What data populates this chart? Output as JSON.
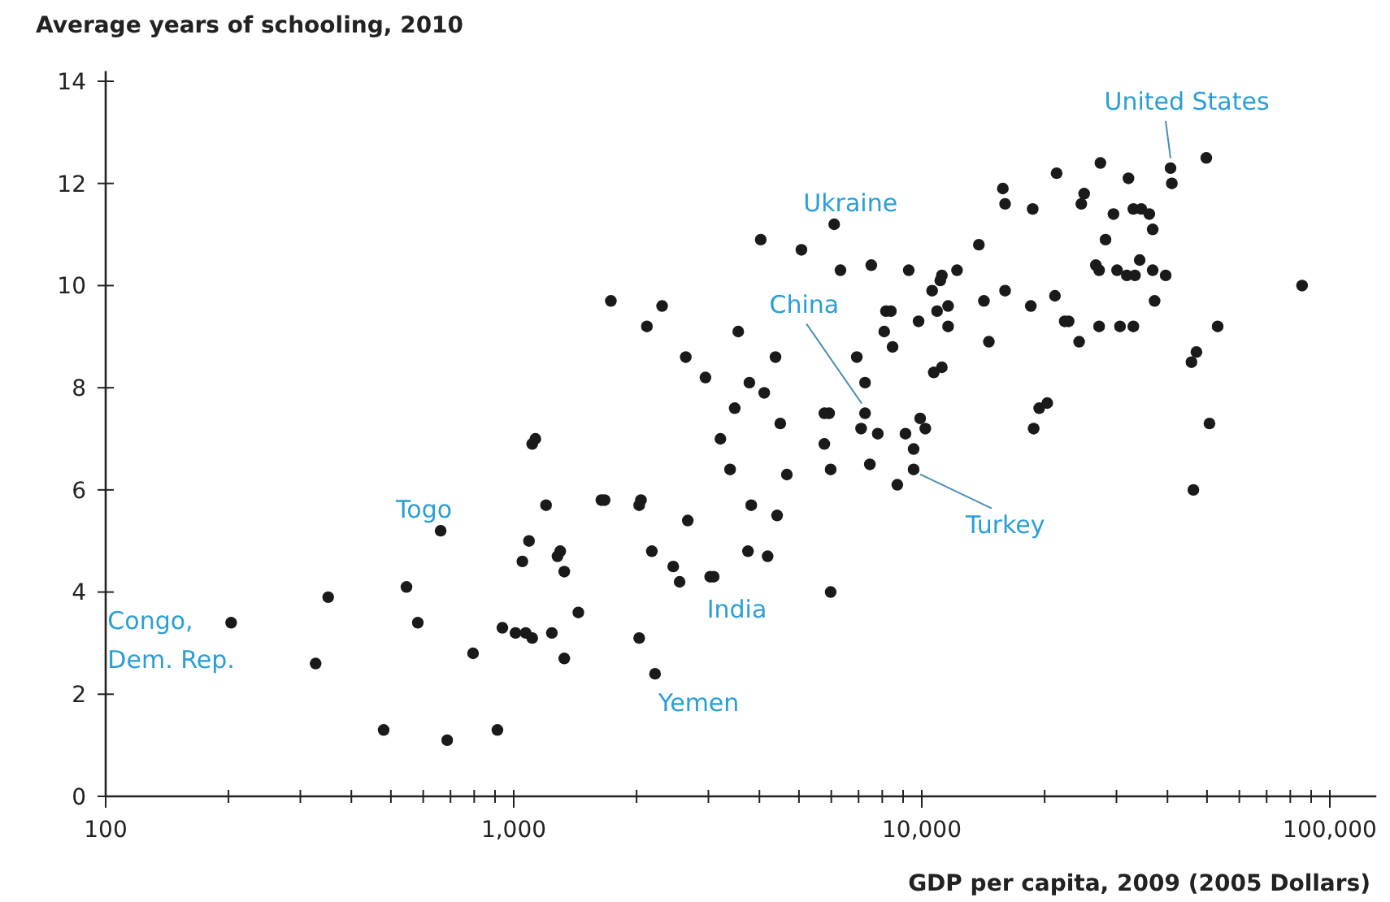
{
  "chart_data": {
    "type": "scatter",
    "xlabel": "GDP per capita, 2009 (2005 Dollars)",
    "ylabel": "Average years of schooling, 2010",
    "log": "x",
    "marker": "circle",
    "grid": false,
    "xlim": [
      100,
      130000
    ],
    "ylim": [
      0,
      14.2
    ],
    "xticks": [
      {
        "value": 100,
        "label": "100"
      },
      {
        "value": 200,
        "label": null
      },
      {
        "value": 300,
        "label": null
      },
      {
        "value": 400,
        "label": null
      },
      {
        "value": 500,
        "label": null
      },
      {
        "value": 600,
        "label": null
      },
      {
        "value": 700,
        "label": null
      },
      {
        "value": 800,
        "label": null
      },
      {
        "value": 900,
        "label": null
      },
      {
        "value": 1000,
        "label": "1,000"
      },
      {
        "value": 2000,
        "label": null
      },
      {
        "value": 3000,
        "label": null
      },
      {
        "value": 4000,
        "label": null
      },
      {
        "value": 5000,
        "label": null
      },
      {
        "value": 6000,
        "label": null
      },
      {
        "value": 7000,
        "label": null
      },
      {
        "value": 8000,
        "label": null
      },
      {
        "value": 9000,
        "label": null
      },
      {
        "value": 10000,
        "label": "10,000"
      },
      {
        "value": 20000,
        "label": null
      },
      {
        "value": 30000,
        "label": null
      },
      {
        "value": 40000,
        "label": null
      },
      {
        "value": 50000,
        "label": null
      },
      {
        "value": 60000,
        "label": null
      },
      {
        "value": 70000,
        "label": null
      },
      {
        "value": 80000,
        "label": null
      },
      {
        "value": 90000,
        "label": null
      },
      {
        "value": 100000,
        "label": "100,000"
      }
    ],
    "yticks": [
      0,
      2,
      4,
      6,
      8,
      10,
      12,
      14
    ],
    "series": [
      {
        "color": "#1a1a1a",
        "x": [
          203,
          327,
          351,
          480,
          546,
          582,
          662,
          687,
          795,
          912,
          938,
          1010,
          1070,
          1110,
          1240,
          1330,
          1050,
          1090,
          1200,
          1280,
          1300,
          1330,
          1110,
          1130,
          1730,
          2310,
          2120,
          3550,
          2640,
          2950,
          4380,
          3780,
          4110,
          3480,
          4500,
          3210,
          3390,
          4670,
          3820,
          4420,
          2670,
          3750,
          4190,
          5980,
          5930,
          5770,
          5770,
          5980,
          7460,
          8710,
          9550,
          9550,
          9120,
          9910,
          10200,
          7800,
          7260,
          7100,
          6930,
          7260,
          6320,
          7520,
          9290,
          8170,
          8400,
          8090,
          8480,
          9820,
          10600,
          10900,
          11600,
          11600,
          11200,
          12200,
          10700,
          11200,
          1640,
          1670,
          2050,
          2030,
          1440,
          2180,
          2460,
          2550,
          3030,
          3090,
          2030,
          2220,
          49800,
          40700,
          41000,
          27400,
          21400,
          32100,
          15800,
          16000,
          18700,
          25000,
          24600,
          29500,
          33000,
          34500,
          36100,
          36800,
          28200,
          13800,
          6100,
          4030,
          5070,
          11100,
          14200,
          16000,
          18500,
          21200,
          14600,
          22400,
          22900,
          24300,
          27200,
          30600,
          33000,
          26700,
          27200,
          30100,
          31800,
          33300,
          34200,
          36800,
          39600,
          37200,
          85500,
          53100,
          47100,
          45800,
          50700,
          46300,
          19400,
          20300,
          18800
        ],
        "values": [
          3.4,
          2.6,
          3.9,
          1.3,
          4.1,
          3.4,
          5.2,
          1.1,
          2.8,
          1.3,
          3.3,
          3.2,
          3.2,
          3.1,
          3.2,
          2.7,
          4.6,
          5.0,
          5.7,
          4.7,
          4.8,
          4.4,
          6.9,
          7.0,
          9.7,
          9.6,
          9.2,
          9.1,
          8.6,
          8.2,
          8.6,
          8.1,
          7.9,
          7.6,
          7.3,
          7.0,
          6.4,
          6.3,
          5.7,
          5.5,
          5.4,
          4.8,
          4.7,
          4.0,
          7.5,
          7.5,
          6.9,
          6.4,
          6.5,
          6.1,
          6.4,
          6.8,
          7.1,
          7.4,
          7.2,
          7.1,
          7.5,
          7.2,
          8.6,
          8.1,
          10.3,
          10.4,
          10.3,
          9.5,
          9.5,
          9.1,
          8.8,
          9.3,
          9.9,
          9.5,
          9.6,
          9.2,
          10.2,
          10.3,
          8.3,
          8.4,
          5.8,
          5.8,
          5.8,
          5.7,
          3.6,
          4.8,
          4.5,
          4.2,
          4.3,
          4.3,
          3.1,
          2.4,
          12.5,
          12.3,
          12.0,
          12.4,
          12.2,
          12.1,
          11.9,
          11.6,
          11.5,
          11.8,
          11.6,
          11.4,
          11.5,
          11.5,
          11.4,
          11.1,
          10.9,
          10.8,
          11.2,
          10.9,
          10.7,
          10.1,
          9.7,
          9.9,
          9.6,
          9.8,
          8.9,
          9.3,
          9.3,
          8.9,
          9.2,
          9.2,
          9.2,
          10.4,
          10.3,
          10.3,
          10.2,
          10.2,
          10.5,
          10.3,
          10.2,
          9.7,
          10.0,
          9.2,
          8.7,
          8.5,
          7.3,
          6.0,
          7.6,
          7.7,
          7.2
        ]
      }
    ],
    "annotations": [
      {
        "text": "Congo, Dem. Rep.",
        "x": 203,
        "y": 3.4
      },
      {
        "text": "Togo",
        "x": 662,
        "y": 5.2
      },
      {
        "text": "Yemen",
        "x": 2220,
        "y": 2.4
      },
      {
        "text": "India",
        "x": 3030,
        "y": 4.3
      },
      {
        "text": "China",
        "x": 7260,
        "y": 7.5
      },
      {
        "text": "Turkey",
        "x": 9550,
        "y": 6.4
      },
      {
        "text": "Ukraine",
        "x": 6100,
        "y": 11.2
      },
      {
        "text": "United States",
        "x": 40700,
        "y": 12.3
      }
    ]
  }
}
